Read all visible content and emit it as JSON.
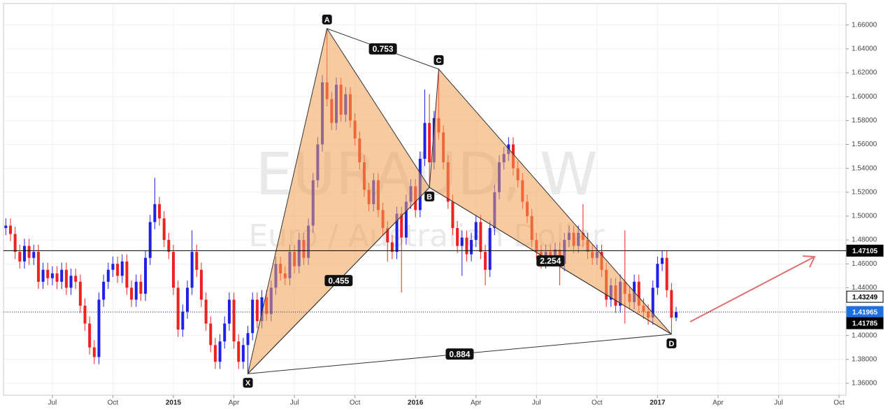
{
  "chart_data": {
    "type": "candlestick",
    "watermark": {
      "symbol": "EURAUD, W",
      "description": "Euro / Australian Dollar"
    },
    "up_color": "#1f1fe8",
    "down_color": "#ee2222",
    "grid": true,
    "categories": [
      null,
      null,
      null,
      null,
      null,
      null,
      null,
      null,
      null,
      null,
      "Jul",
      null,
      null,
      null,
      null,
      null,
      null,
      null,
      null,
      null,
      null,
      null,
      null,
      "Oct",
      null,
      null,
      null,
      null,
      null,
      null,
      null,
      null,
      null,
      null,
      null,
      null,
      "2015",
      null,
      null,
      null,
      null,
      null,
      null,
      null,
      null,
      null,
      null,
      null,
      null,
      "Apr",
      null,
      null,
      null,
      null,
      null,
      null,
      null,
      null,
      null,
      null,
      null,
      null,
      "Jul",
      null,
      null,
      null,
      null,
      null,
      null,
      null,
      null,
      null,
      null,
      null,
      null,
      "Oct",
      null,
      null,
      null,
      null,
      null,
      null,
      null,
      null,
      null,
      null,
      null,
      null,
      "2016",
      null,
      null,
      null,
      null,
      null,
      null,
      null,
      null,
      null,
      null,
      null,
      null,
      "Apr",
      null,
      null,
      null,
      null,
      null,
      null,
      null,
      null,
      null,
      null,
      null,
      null,
      "Jul",
      null,
      null,
      null,
      null,
      null,
      null,
      null,
      null,
      null,
      null,
      null,
      null,
      "Oct",
      null,
      null,
      null,
      null,
      null,
      null,
      null,
      null,
      null,
      null,
      null,
      null,
      "2017",
      null,
      null,
      null,
      null,
      null,
      null,
      null,
      null,
      null,
      null,
      null,
      null,
      "Apr",
      null,
      null,
      null,
      null,
      null,
      null,
      null,
      null,
      null,
      null,
      null,
      null,
      "Jul",
      null,
      null,
      null,
      null,
      null,
      null,
      null,
      null,
      null,
      null,
      null,
      null,
      "Oct",
      null
    ],
    "open": [
      1.49,
      1.492,
      1.485,
      1.47,
      1.462,
      1.475,
      1.465,
      1.47,
      1.445,
      1.455,
      1.448,
      1.452,
      1.445,
      1.455,
      1.44,
      1.45,
      1.445,
      1.425,
      1.41,
      1.39,
      1.382,
      1.43,
      1.445,
      1.455,
      1.46,
      1.45,
      1.462,
      1.44,
      1.43,
      1.445,
      1.435,
      1.465,
      1.495,
      1.51,
      1.498,
      1.48,
      1.47,
      1.44,
      1.405,
      1.42,
      1.44,
      1.47,
      1.455,
      1.43,
      1.41,
      1.392,
      1.378,
      1.395,
      1.41,
      1.43,
      1.395,
      1.378,
      1.392,
      1.402,
      1.43,
      1.412,
      1.432,
      1.418,
      1.44,
      1.46,
      1.452,
      1.448,
      1.47,
      1.458,
      1.48,
      1.465,
      1.492,
      1.53,
      1.56,
      1.612,
      1.598,
      1.578,
      1.61,
      1.585,
      1.602,
      1.58,
      1.565,
      1.545,
      1.522,
      1.51,
      1.53,
      1.505,
      1.49,
      1.478,
      1.47,
      1.502,
      1.482,
      1.512,
      1.525,
      1.505,
      1.548,
      1.578,
      1.545,
      1.582,
      1.57,
      1.545,
      1.512,
      1.49,
      1.475,
      1.482,
      1.468,
      1.48,
      1.495,
      1.47,
      1.455,
      1.49,
      1.52,
      1.545,
      1.552,
      1.56,
      1.54,
      1.53,
      1.512,
      1.5,
      1.48,
      1.47,
      1.462,
      1.47,
      1.465,
      1.472,
      1.46,
      1.48,
      1.486,
      1.475,
      1.486,
      1.48,
      1.47,
      1.465,
      1.47,
      1.455,
      1.43,
      1.442,
      1.425,
      1.445,
      1.435,
      1.428,
      1.445,
      1.425,
      1.42,
      1.415,
      1.44,
      1.46,
      1.465,
      1.438,
      1.415,
      null,
      null,
      null,
      null,
      null,
      null,
      null,
      null,
      null,
      null,
      null,
      null,
      null,
      null,
      null,
      null,
      null,
      null,
      null,
      null,
      null,
      null,
      null,
      null,
      null,
      null,
      null,
      null,
      null,
      null,
      null,
      null,
      null,
      null,
      null,
      null
    ],
    "high": [
      1.498,
      1.498,
      1.491,
      1.476,
      1.481,
      1.481,
      1.476,
      1.476,
      1.461,
      1.461,
      1.458,
      1.458,
      1.461,
      1.461,
      1.456,
      1.456,
      1.451,
      1.431,
      1.416,
      1.396,
      1.436,
      1.451,
      1.461,
      1.466,
      1.466,
      1.468,
      1.468,
      1.446,
      1.451,
      1.451,
      1.471,
      1.501,
      1.532,
      1.516,
      1.504,
      1.486,
      1.476,
      1.446,
      1.426,
      1.446,
      1.488,
      1.476,
      1.461,
      1.436,
      1.416,
      1.398,
      1.401,
      1.416,
      1.436,
      1.436,
      1.401,
      1.398,
      1.408,
      1.436,
      1.436,
      1.438,
      1.438,
      1.446,
      1.466,
      1.466,
      1.458,
      1.476,
      1.476,
      1.486,
      1.486,
      1.498,
      1.536,
      1.566,
      1.618,
      1.657,
      1.604,
      1.616,
      1.616,
      1.608,
      1.608,
      1.586,
      1.571,
      1.551,
      1.528,
      1.536,
      1.536,
      1.511,
      1.496,
      1.484,
      1.508,
      1.508,
      1.518,
      1.531,
      1.531,
      1.554,
      1.606,
      1.602,
      1.588,
      1.623,
      1.576,
      1.551,
      1.518,
      1.496,
      1.488,
      1.488,
      1.486,
      1.501,
      1.501,
      1.476,
      1.496,
      1.526,
      1.551,
      1.558,
      1.566,
      1.566,
      1.546,
      1.536,
      1.518,
      1.506,
      1.486,
      1.476,
      1.476,
      1.476,
      1.478,
      1.478,
      1.486,
      1.492,
      1.492,
      1.492,
      1.51,
      1.486,
      1.476,
      1.476,
      1.476,
      1.461,
      1.448,
      1.448,
      1.451,
      1.488,
      1.441,
      1.451,
      1.451,
      1.431,
      1.426,
      1.446,
      1.466,
      1.471,
      1.471,
      1.444,
      1.424,
      null,
      null,
      null,
      null,
      null,
      null,
      null,
      null,
      null,
      null,
      null,
      null,
      null,
      null,
      null,
      null,
      null,
      null,
      null,
      null,
      null,
      null,
      null,
      null,
      null,
      null,
      null,
      null,
      null,
      null,
      null,
      null,
      null,
      null,
      null,
      null
    ],
    "low": [
      1.484,
      1.479,
      1.464,
      1.456,
      1.456,
      1.459,
      1.459,
      1.439,
      1.439,
      1.442,
      1.442,
      1.439,
      1.439,
      1.434,
      1.434,
      1.439,
      1.419,
      1.404,
      1.384,
      1.376,
      1.376,
      1.424,
      1.439,
      1.449,
      1.444,
      1.444,
      1.434,
      1.424,
      1.424,
      1.429,
      1.429,
      1.459,
      1.489,
      1.492,
      1.474,
      1.464,
      1.434,
      1.399,
      1.399,
      1.414,
      1.434,
      1.449,
      1.424,
      1.404,
      1.386,
      1.372,
      1.372,
      1.389,
      1.404,
      1.389,
      1.372,
      1.372,
      1.368,
      1.396,
      1.406,
      1.406,
      1.412,
      1.412,
      1.434,
      1.446,
      1.442,
      1.442,
      1.452,
      1.452,
      1.459,
      1.459,
      1.486,
      1.524,
      1.554,
      1.592,
      1.572,
      1.572,
      1.579,
      1.579,
      1.574,
      1.559,
      1.539,
      1.516,
      1.504,
      1.504,
      1.499,
      1.484,
      1.462,
      1.464,
      1.464,
      1.436,
      1.476,
      1.506,
      1.499,
      1.499,
      1.542,
      1.524,
      1.539,
      1.564,
      1.539,
      1.506,
      1.484,
      1.469,
      1.45,
      1.462,
      1.462,
      1.474,
      1.464,
      1.442,
      1.449,
      1.484,
      1.514,
      1.539,
      1.546,
      1.534,
      1.524,
      1.506,
      1.494,
      1.474,
      1.464,
      1.456,
      1.456,
      1.459,
      1.459,
      1.442,
      1.454,
      1.474,
      1.469,
      1.469,
      1.474,
      1.464,
      1.459,
      1.459,
      1.449,
      1.424,
      1.424,
      1.419,
      1.419,
      1.41,
      1.422,
      1.422,
      1.419,
      1.414,
      1.409,
      1.409,
      1.434,
      1.454,
      1.432,
      1.401,
      1.412,
      null,
      null,
      null,
      null,
      null,
      null,
      null,
      null,
      null,
      null,
      null,
      null,
      null,
      null,
      null,
      null,
      null,
      null,
      null,
      null,
      null,
      null,
      null,
      null,
      null,
      null,
      null,
      null,
      null,
      null,
      null,
      null,
      null,
      null,
      null,
      null
    ],
    "close": [
      1.492,
      1.485,
      1.47,
      1.462,
      1.475,
      1.465,
      1.47,
      1.445,
      1.455,
      1.448,
      1.452,
      1.445,
      1.455,
      1.44,
      1.45,
      1.445,
      1.425,
      1.41,
      1.39,
      1.382,
      1.43,
      1.445,
      1.455,
      1.46,
      1.45,
      1.462,
      1.44,
      1.43,
      1.445,
      1.435,
      1.465,
      1.495,
      1.51,
      1.498,
      1.48,
      1.47,
      1.44,
      1.405,
      1.42,
      1.44,
      1.47,
      1.455,
      1.43,
      1.41,
      1.392,
      1.378,
      1.395,
      1.41,
      1.43,
      1.395,
      1.378,
      1.392,
      1.402,
      1.43,
      1.412,
      1.432,
      1.418,
      1.44,
      1.46,
      1.452,
      1.448,
      1.47,
      1.458,
      1.48,
      1.465,
      1.492,
      1.53,
      1.56,
      1.612,
      1.598,
      1.578,
      1.61,
      1.585,
      1.602,
      1.58,
      1.565,
      1.545,
      1.522,
      1.51,
      1.53,
      1.505,
      1.49,
      1.478,
      1.47,
      1.502,
      1.482,
      1.512,
      1.525,
      1.505,
      1.548,
      1.578,
      1.545,
      1.582,
      1.57,
      1.545,
      1.512,
      1.49,
      1.475,
      1.482,
      1.468,
      1.48,
      1.495,
      1.47,
      1.455,
      1.49,
      1.52,
      1.545,
      1.552,
      1.56,
      1.54,
      1.53,
      1.512,
      1.5,
      1.48,
      1.47,
      1.462,
      1.47,
      1.465,
      1.472,
      1.46,
      1.48,
      1.486,
      1.475,
      1.486,
      1.48,
      1.47,
      1.465,
      1.47,
      1.455,
      1.43,
      1.442,
      1.425,
      1.445,
      1.435,
      1.428,
      1.445,
      1.425,
      1.42,
      1.415,
      1.44,
      1.46,
      1.465,
      1.438,
      1.415,
      1.41965,
      null,
      null,
      null,
      null,
      null,
      null,
      null,
      null,
      null,
      null,
      null,
      null,
      null,
      null,
      null,
      null,
      null,
      null,
      null,
      null,
      null,
      null,
      null,
      null,
      null,
      null,
      null,
      null,
      null,
      null,
      null,
      null,
      null,
      null,
      null,
      null
    ],
    "ylim": [
      1.35,
      1.678
    ],
    "yticks": [
      {
        "value": 1.36,
        "label": "1.36000"
      },
      {
        "value": 1.38,
        "label": "1.38000"
      },
      {
        "value": 1.4,
        "label": "1.40000"
      },
      {
        "value": 1.42,
        "label": "1.42000"
      },
      {
        "value": 1.44,
        "label": "1.44000"
      },
      {
        "value": 1.46,
        "label": "1.46000"
      },
      {
        "value": 1.48,
        "label": "1.48000"
      },
      {
        "value": 1.5,
        "label": "1.50000"
      },
      {
        "value": 1.52,
        "label": "1.52000"
      },
      {
        "value": 1.54,
        "label": "1.54000"
      },
      {
        "value": 1.56,
        "label": "1.56000"
      },
      {
        "value": 1.58,
        "label": "1.58000"
      },
      {
        "value": 1.6,
        "label": "1.60000"
      },
      {
        "value": 1.62,
        "label": "1.62000"
      },
      {
        "value": 1.64,
        "label": "1.64000"
      },
      {
        "value": 1.66,
        "label": "1.66000"
      }
    ],
    "levels": [
      {
        "value": 1.47105,
        "color": "#000000",
        "text_color": "#ffffff",
        "line": "solid"
      },
      {
        "value": 1.43249,
        "color": "#ffffff",
        "text_color": "#000000",
        "line": "none"
      },
      {
        "value": 1.41965,
        "color": "#1e6fe0",
        "text_color": "#ffffff",
        "line": "dotted"
      },
      {
        "value": 1.41785,
        "color": "#000000",
        "text_color": "#ffffff",
        "line": "none"
      }
    ],
    "pattern": {
      "fill": "#f0a050",
      "points": [
        {
          "label": "X",
          "index": 52,
          "price": 1.368
        },
        {
          "label": "A",
          "index": 69,
          "price": 1.657
        },
        {
          "label": "B",
          "index": 91,
          "price": 1.524
        },
        {
          "label": "C",
          "index": 93,
          "price": 1.623
        },
        {
          "label": "D",
          "index": 143,
          "price": 1.401
        }
      ],
      "ratios": [
        {
          "value": 0.753,
          "from": "A",
          "to": "C"
        },
        {
          "value": 0.455,
          "from": "X",
          "to": "B"
        },
        {
          "value": 2.254,
          "from": "B",
          "to": "D"
        },
        {
          "value": 0.884,
          "from": "X",
          "to": "D"
        }
      ]
    }
  }
}
